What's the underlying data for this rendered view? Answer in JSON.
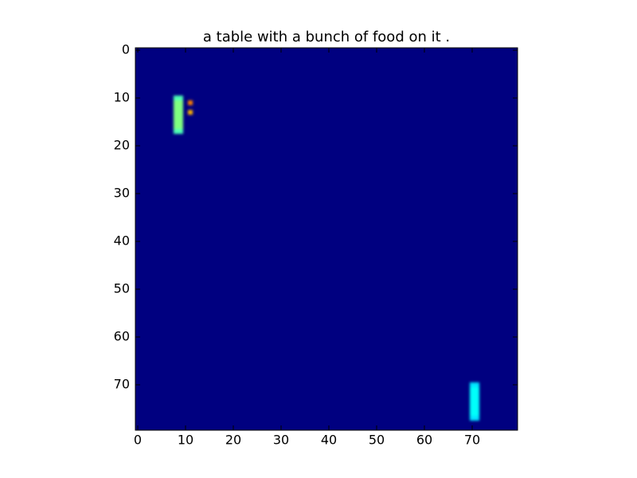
{
  "chart_data": {
    "type": "heatmap",
    "title": "a table with a bunch of food on it .",
    "x": [
      8,
      9,
      8,
      9,
      8,
      9,
      8,
      9,
      8,
      9,
      8,
      9,
      8,
      9,
      8,
      9,
      11,
      11,
      70,
      71,
      70,
      71,
      70,
      71,
      70,
      71,
      70,
      71,
      70,
      71,
      70,
      71,
      70,
      71
    ],
    "y": [
      10,
      10,
      11,
      11,
      12,
      12,
      13,
      13,
      14,
      14,
      15,
      15,
      16,
      16,
      17,
      17,
      11,
      13,
      70,
      70,
      71,
      71,
      72,
      72,
      73,
      73,
      74,
      74,
      75,
      75,
      76,
      76,
      77,
      77
    ],
    "values": [
      0.45,
      0.45,
      0.5,
      0.5,
      0.5,
      0.5,
      0.5,
      0.5,
      0.5,
      0.5,
      0.5,
      0.5,
      0.5,
      0.5,
      0.45,
      0.45,
      0.75,
      0.7,
      0.35,
      0.35,
      0.38,
      0.38,
      0.38,
      0.38,
      0.38,
      0.38,
      0.38,
      0.38,
      0.38,
      0.38,
      0.38,
      0.38,
      0.35,
      0.35
    ],
    "clim": [
      0,
      1
    ],
    "colormap": "jet",
    "xlim": [
      -0.5,
      79.5
    ],
    "ylim": [
      79.5,
      -0.5
    ],
    "xticks": [
      0,
      10,
      20,
      30,
      40,
      50,
      60,
      70
    ],
    "yticks": [
      0,
      10,
      20,
      30,
      40,
      50,
      60,
      70
    ]
  }
}
